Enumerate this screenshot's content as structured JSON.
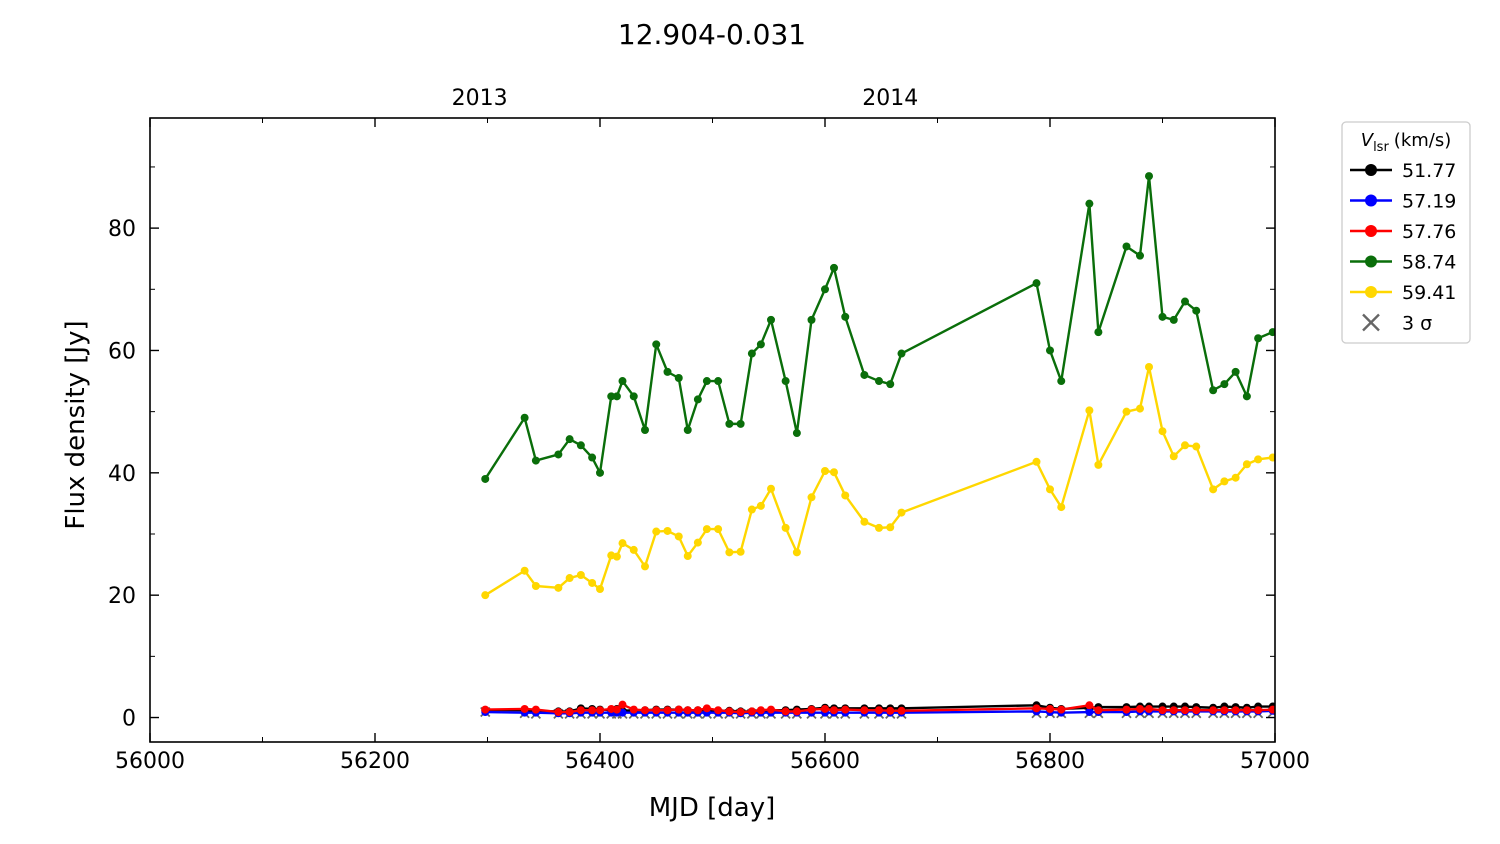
{
  "chart_data": {
    "type": "line",
    "title": "12.904-0.031",
    "xlabel": "MJD [day]",
    "ylabel": "Flux density [Jy]",
    "xlim": [
      56000,
      57000
    ],
    "ylim": [
      -4,
      98
    ],
    "x_ticks": [
      56000,
      56200,
      56400,
      56600,
      56800,
      57000
    ],
    "y_ticks": [
      0,
      20,
      40,
      60,
      80
    ],
    "top_axis": {
      "ticks": [
        {
          "x": 56293,
          "label": "2013"
        },
        {
          "x": 56658,
          "label": "2014"
        }
      ]
    },
    "grid": false,
    "legend": {
      "placement": "outside-right-top",
      "title_main": "V",
      "title_sub": "lsr",
      "title_unit": "(km/s)"
    },
    "series": [
      {
        "name": "51.77",
        "color": "#000000",
        "x": [
          56298,
          56333,
          56343,
          56363,
          56373,
          56383,
          56393,
          56400,
          56410,
          56415,
          56420,
          56430,
          56440,
          56450,
          56460,
          56470,
          56478,
          56487,
          56495,
          56505,
          56515,
          56525,
          56535,
          56543,
          56552,
          56565,
          56575,
          56588,
          56600,
          56608,
          56618,
          56635,
          56648,
          56658,
          56668,
          56788,
          56800,
          56810,
          56835,
          56843,
          56868,
          56880,
          56888,
          56900,
          56910,
          56920,
          56930,
          56945,
          56955,
          56965,
          56975,
          56985,
          56998
        ],
        "values": [
          1.2,
          1.2,
          1.1,
          1.0,
          1.0,
          1.5,
          1.4,
          1.3,
          1.2,
          1.4,
          1.1,
          1.2,
          1.2,
          1.3,
          1.3,
          1.3,
          1.2,
          1.2,
          1.2,
          1.1,
          1.1,
          1.0,
          1.0,
          1.1,
          1.2,
          1.2,
          1.3,
          1.4,
          1.6,
          1.5,
          1.5,
          1.5,
          1.5,
          1.5,
          1.5,
          2.0,
          1.6,
          1.4,
          1.6,
          1.7,
          1.7,
          1.8,
          1.8,
          1.8,
          1.8,
          1.8,
          1.7,
          1.6,
          1.8,
          1.7,
          1.6,
          1.8,
          1.8
        ]
      },
      {
        "name": "57.19",
        "color": "#0000ff",
        "x": [
          56298,
          56333,
          56343,
          56363,
          56373,
          56383,
          56393,
          56400,
          56410,
          56415,
          56420,
          56430,
          56440,
          56450,
          56460,
          56470,
          56478,
          56487,
          56495,
          56505,
          56515,
          56525,
          56535,
          56543,
          56552,
          56565,
          56575,
          56588,
          56600,
          56608,
          56618,
          56635,
          56648,
          56658,
          56668,
          56788,
          56800,
          56810,
          56835,
          56843,
          56868,
          56880,
          56888,
          56900,
          56910,
          56920,
          56930,
          56945,
          56955,
          56965,
          56975,
          56985,
          56998
        ],
        "values": [
          0.9,
          0.8,
          0.8,
          0.7,
          0.7,
          0.8,
          0.8,
          0.8,
          0.8,
          0.8,
          0.8,
          0.8,
          0.8,
          0.8,
          0.8,
          0.8,
          0.8,
          0.8,
          0.8,
          0.8,
          0.8,
          0.7,
          0.8,
          0.8,
          0.8,
          0.8,
          0.8,
          0.8,
          0.8,
          0.8,
          0.8,
          0.8,
          0.8,
          0.8,
          0.8,
          1.0,
          0.9,
          0.8,
          0.9,
          0.9,
          0.9,
          1.0,
          1.0,
          1.0,
          1.0,
          1.0,
          1.0,
          1.0,
          1.0,
          1.0,
          1.0,
          1.0,
          1.1
        ]
      },
      {
        "name": "57.76",
        "color": "#ff0000",
        "x": [
          56298,
          56333,
          56343,
          56363,
          56373,
          56383,
          56393,
          56400,
          56410,
          56415,
          56420,
          56430,
          56440,
          56450,
          56460,
          56470,
          56478,
          56487,
          56495,
          56505,
          56515,
          56525,
          56535,
          56543,
          56552,
          56565,
          56575,
          56588,
          56600,
          56608,
          56618,
          56635,
          56648,
          56658,
          56668,
          56788,
          56800,
          56810,
          56835,
          56843,
          56868,
          56880,
          56888,
          56900,
          56910,
          56920,
          56930,
          56945,
          56955,
          56965,
          56975,
          56985,
          56998
        ],
        "values": [
          1.3,
          1.4,
          1.3,
          0.9,
          0.9,
          1.2,
          1.2,
          1.2,
          1.4,
          1.3,
          2.1,
          1.3,
          1.2,
          1.2,
          1.2,
          1.3,
          1.2,
          1.2,
          1.5,
          1.2,
          1.0,
          0.9,
          1.0,
          1.2,
          1.3,
          1.0,
          1.0,
          1.3,
          1.4,
          1.2,
          1.3,
          1.2,
          1.2,
          1.1,
          1.1,
          1.5,
          1.4,
          1.3,
          2.0,
          1.2,
          1.3,
          1.4,
          1.4,
          1.2,
          1.2,
          1.2,
          1.2,
          1.2,
          1.2,
          1.2,
          1.2,
          1.2,
          1.3
        ]
      },
      {
        "name": "58.74",
        "color": "#0a6e0a",
        "x": [
          56298,
          56333,
          56343,
          56363,
          56373,
          56383,
          56393,
          56400,
          56410,
          56415,
          56420,
          56430,
          56440,
          56450,
          56460,
          56470,
          56478,
          56487,
          56495,
          56505,
          56515,
          56525,
          56535,
          56543,
          56552,
          56565,
          56575,
          56588,
          56600,
          56608,
          56618,
          56635,
          56648,
          56658,
          56668,
          56788,
          56800,
          56810,
          56835,
          56843,
          56868,
          56880,
          56888,
          56900,
          56910,
          56920,
          56930,
          56945,
          56955,
          56965,
          56975,
          56985,
          56998
        ],
        "values": [
          39,
          49,
          42,
          43,
          45.5,
          44.5,
          42.5,
          40,
          52.5,
          52.5,
          55,
          52.5,
          47,
          61,
          56.5,
          55.5,
          47,
          52,
          55,
          55,
          48,
          48,
          59.5,
          61,
          65,
          55,
          46.5,
          65,
          70,
          73.5,
          65.5,
          56,
          55,
          54.5,
          59.5,
          71,
          60,
          55,
          84,
          63,
          77,
          75.5,
          88.5,
          65.5,
          65,
          68,
          66.5,
          53.5,
          54.5,
          56.5,
          52.5,
          62,
          63
        ]
      },
      {
        "name": "59.41",
        "color": "#ffd700",
        "x": [
          56298,
          56333,
          56343,
          56363,
          56373,
          56383,
          56393,
          56400,
          56410,
          56415,
          56420,
          56430,
          56440,
          56450,
          56460,
          56470,
          56478,
          56487,
          56495,
          56505,
          56515,
          56525,
          56535,
          56543,
          56552,
          56565,
          56575,
          56588,
          56600,
          56608,
          56618,
          56635,
          56648,
          56658,
          56668,
          56788,
          56800,
          56810,
          56835,
          56843,
          56868,
          56880,
          56888,
          56900,
          56910,
          56920,
          56930,
          56945,
          56955,
          56965,
          56975,
          56985,
          56998
        ],
        "values": [
          20,
          24,
          21.5,
          21.2,
          22.8,
          23.3,
          22,
          21,
          26.5,
          26.3,
          28.5,
          27.4,
          24.7,
          30.4,
          30.5,
          29.6,
          26.4,
          28.6,
          30.8,
          30.8,
          27,
          27.1,
          34,
          34.6,
          37.4,
          31,
          27,
          36,
          40.3,
          40.1,
          36.3,
          32,
          31,
          31.1,
          33.5,
          41.8,
          37.3,
          34.4,
          50.2,
          41.3,
          50,
          50.5,
          57.3,
          46.8,
          42.7,
          44.5,
          44.3,
          37.3,
          38.6,
          39.2,
          41.4,
          42.2,
          42.5
        ]
      }
    ],
    "sigma3": {
      "name": "3 σ",
      "color": "#666666",
      "x": [
        56298,
        56333,
        56343,
        56363,
        56373,
        56383,
        56393,
        56400,
        56410,
        56415,
        56420,
        56430,
        56440,
        56450,
        56460,
        56470,
        56478,
        56487,
        56495,
        56505,
        56515,
        56525,
        56535,
        56543,
        56552,
        56565,
        56575,
        56588,
        56600,
        56608,
        56618,
        56635,
        56648,
        56658,
        56668,
        56788,
        56800,
        56810,
        56835,
        56843,
        56868,
        56880,
        56888,
        56900,
        56910,
        56920,
        56930,
        56945,
        56955,
        56965,
        56975,
        56985,
        56998
      ],
      "values": [
        0.9,
        0.7,
        0.6,
        0.6,
        0.6,
        0.6,
        0.6,
        0.6,
        0.6,
        0.6,
        0.6,
        0.6,
        0.6,
        0.6,
        0.6,
        0.6,
        0.6,
        0.6,
        0.6,
        0.6,
        0.6,
        0.6,
        0.6,
        0.6,
        0.6,
        0.6,
        0.6,
        0.6,
        0.6,
        0.6,
        0.6,
        0.6,
        0.6,
        0.6,
        0.6,
        0.7,
        0.7,
        0.7,
        0.7,
        0.7,
        0.7,
        0.7,
        0.7,
        0.7,
        0.7,
        0.7,
        0.7,
        0.7,
        0.7,
        0.7,
        0.7,
        0.7,
        0.8
      ]
    }
  }
}
